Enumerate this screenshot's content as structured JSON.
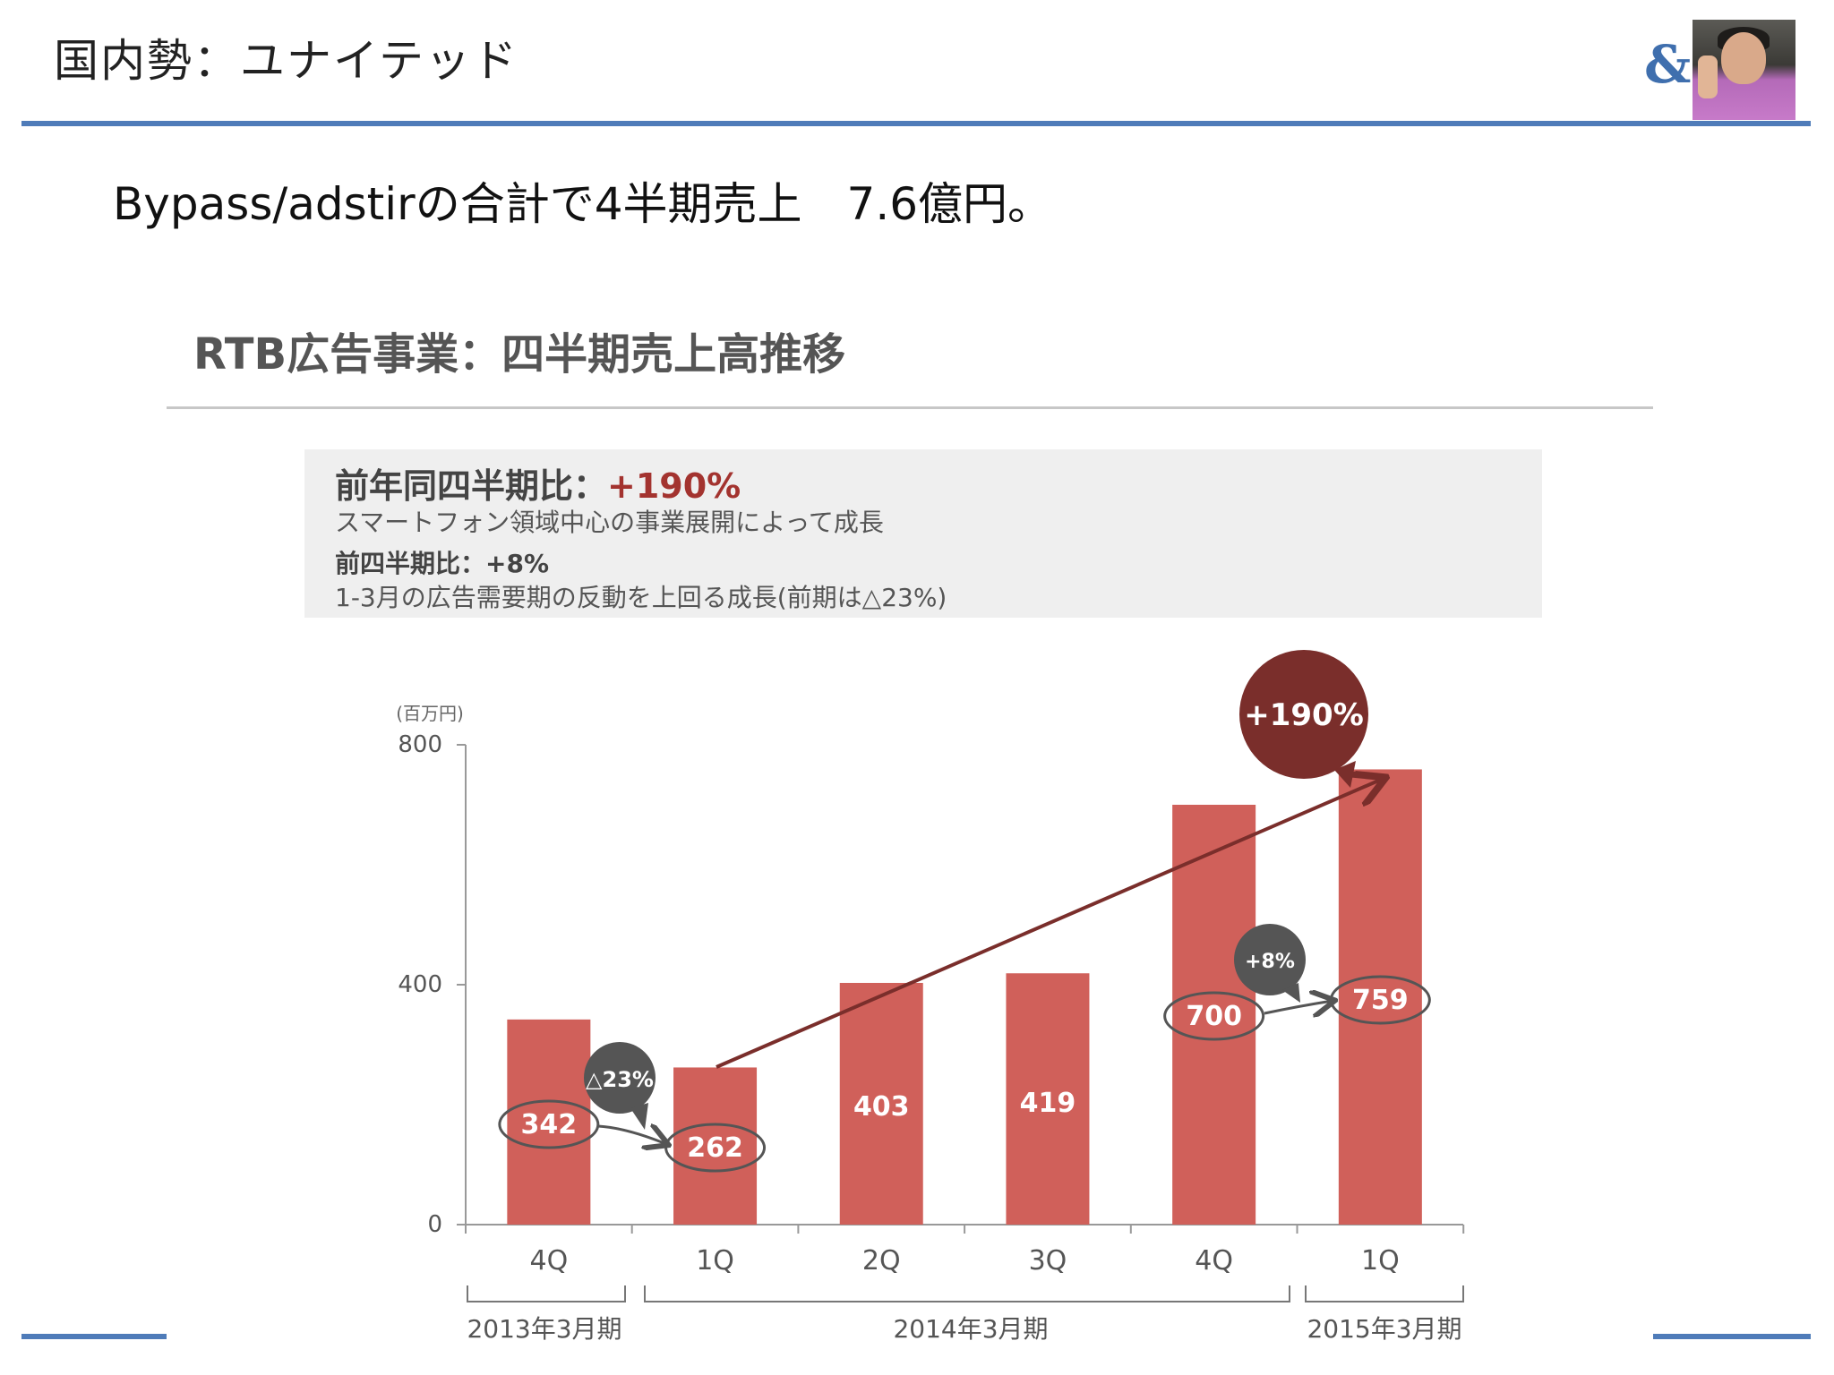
{
  "header": {
    "title": "国内勢：ユナイテッド",
    "logo_mark": "&"
  },
  "subtitle": "Bypass/adstirの合計で4半期売上　7.6億円。",
  "section": {
    "heading": "RTB広告事業：四半期売上高推移"
  },
  "summary": {
    "yoy_label": "前年同四半期比：",
    "yoy_value": "+190%",
    "yoy_note": "スマートフォン領域中心の事業展開によって成長",
    "qoq_label": "前四半期比：+8%",
    "qoq_note": "1-3月の広告需要期の反動を上回る成長(前期は△23%)"
  },
  "colors": {
    "bar": "#d0605a",
    "accent_dark": "#7a2e2b",
    "bubble_gray": "#555555",
    "rule_blue": "#4f7cb9"
  },
  "chart_data": {
    "type": "bar",
    "unit_label": "(百万円)",
    "categories": [
      "4Q",
      "1Q",
      "2Q",
      "3Q",
      "4Q",
      "1Q"
    ],
    "values": [
      342,
      262,
      403,
      419,
      700,
      759
    ],
    "value_labels": [
      "342",
      "262",
      "403",
      "419",
      "700",
      "759"
    ],
    "ylim": [
      0,
      800
    ],
    "yticks": [
      "0",
      "400",
      "800"
    ],
    "period_groups": [
      {
        "label": "2013年3月期",
        "start": 0,
        "end": 0
      },
      {
        "label": "2014年3月期",
        "start": 1,
        "end": 4
      },
      {
        "label": "2015年3月期",
        "start": 5,
        "end": 5
      }
    ],
    "callouts": [
      {
        "text": "△23%",
        "from": 0,
        "to": 1
      },
      {
        "text": "+8%",
        "from": 4,
        "to": 5
      },
      {
        "text": "+190%",
        "from": 1,
        "to": 5
      }
    ],
    "grid": false,
    "legend": "none"
  }
}
